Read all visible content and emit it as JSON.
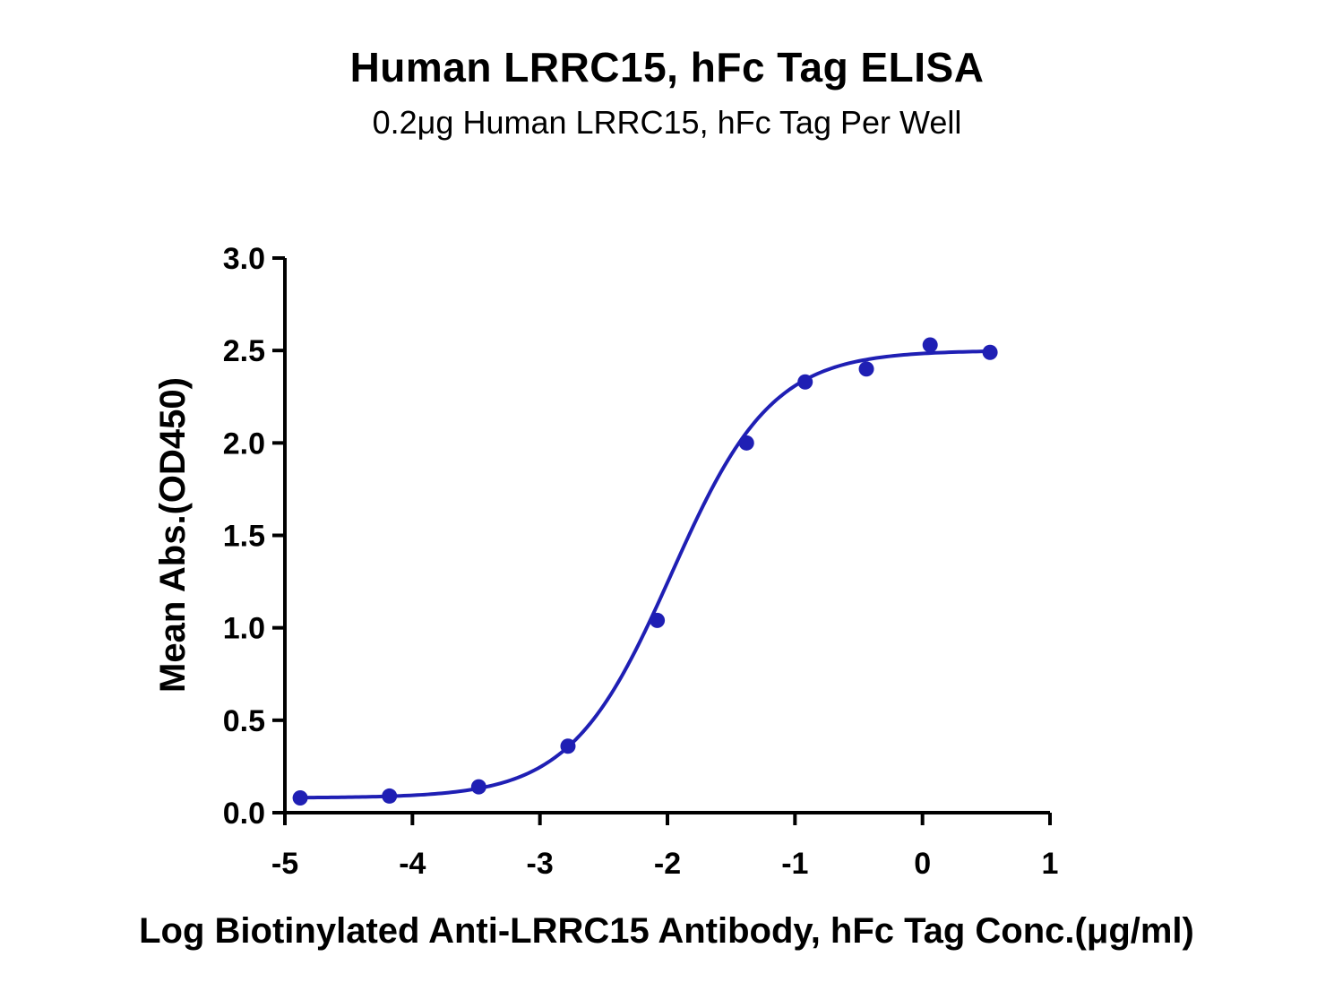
{
  "chart_data": {
    "type": "scatter",
    "title": "Human LRRC15, hFc Tag ELISA",
    "subtitle": "0.2μg Human LRRC15, hFc Tag Per Well",
    "xlabel": "Log Biotinylated Anti-LRRC15 Antibody, hFc Tag Conc.(μg/ml)",
    "ylabel": "Mean Abs.(OD450)",
    "xlim": [
      -5,
      1
    ],
    "ylim": [
      0,
      3.0
    ],
    "x_ticks": [
      -5,
      -4,
      -3,
      -2,
      -1,
      0,
      1
    ],
    "x_tick_labels": [
      "-5",
      "-4",
      "-3",
      "-2",
      "-1",
      "0",
      "1"
    ],
    "y_ticks": [
      0,
      0.5,
      1.0,
      1.5,
      2.0,
      2.5,
      3.0
    ],
    "y_tick_labels": [
      "0.0",
      "0.5",
      "1.0",
      "1.5",
      "2.0",
      "2.5",
      "3.0"
    ],
    "grid": false,
    "color": "#1f1fb4",
    "series": [
      {
        "x": [
          -4.88,
          -4.18,
          -3.48,
          -2.78,
          -2.08,
          -1.38,
          -0.92,
          -0.44,
          0.06,
          0.53
        ],
        "y": [
          0.08,
          0.09,
          0.14,
          0.36,
          1.04,
          2.0,
          2.33,
          2.4,
          2.53,
          2.49
        ]
      }
    ],
    "fit": {
      "model": "4PL",
      "bottom": 0.08,
      "top": 2.5,
      "log_ec50": -1.97,
      "hill": 1.1
    }
  }
}
